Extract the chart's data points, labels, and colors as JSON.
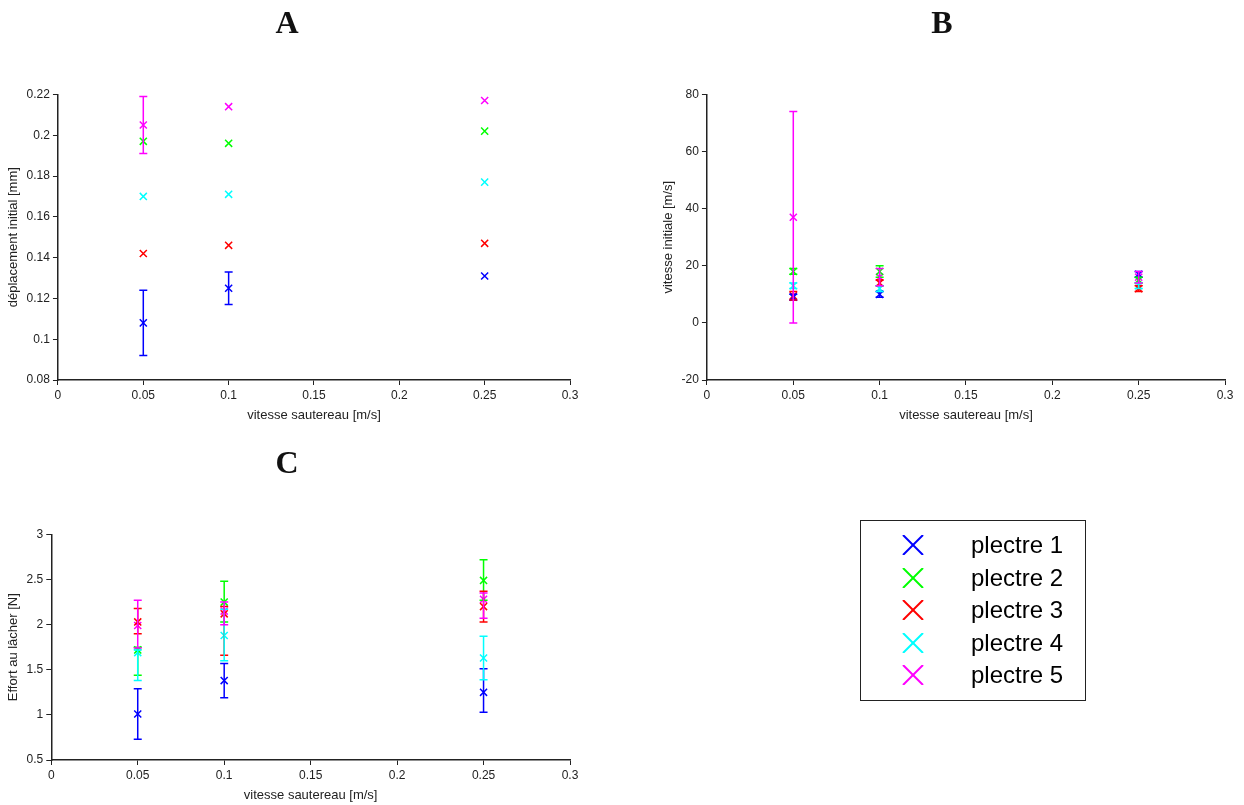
{
  "chart_data": [
    {
      "type": "scatter",
      "title": "A",
      "xlabel": "vitesse sautereau [m/s]",
      "ylabel": "déplacement initial [mm]",
      "xlim": [
        0,
        0.3
      ],
      "xticks": [
        0,
        0.05,
        0.1,
        0.15,
        0.2,
        0.25,
        0.3
      ],
      "ylim": [
        0.08,
        0.22
      ],
      "yticks": [
        0.08,
        0.1,
        0.12,
        0.14,
        0.16,
        0.18,
        0.2,
        0.22
      ],
      "marker": "cross",
      "grid": false,
      "x": [
        0.05,
        0.1,
        0.25
      ],
      "series": [
        {
          "color": "#0000ff",
          "values": [
            0.108,
            0.125,
            0.131
          ],
          "errors": [
            [
              0.092,
              0.124
            ],
            [
              0.117,
              0.133
            ],
            null
          ]
        },
        {
          "color": "#00ff00",
          "values": [
            0.197,
            0.196,
            0.202
          ]
        },
        {
          "color": "#ff0000",
          "values": [
            0.142,
            0.146,
            0.147
          ]
        },
        {
          "color": "#00ffff",
          "values": [
            0.17,
            0.171,
            0.177
          ]
        },
        {
          "color": "#ff00ff",
          "values": [
            0.205,
            0.214,
            0.217
          ],
          "errors": [
            [
              0.191,
              0.219
            ],
            null,
            null
          ]
        }
      ]
    },
    {
      "type": "scatter",
      "title": "B",
      "xlabel": "vitesse sautereau [m/s]",
      "ylabel": "vitesse initiale [m/s]",
      "xlim": [
        0,
        0.3
      ],
      "xticks": [
        0,
        0.05,
        0.1,
        0.15,
        0.2,
        0.25,
        0.3
      ],
      "ylim": [
        -20,
        80
      ],
      "yticks": [
        -20,
        0,
        20,
        40,
        60,
        80
      ],
      "marker": "cross",
      "grid": false,
      "x": [
        0.05,
        0.1,
        0.25
      ],
      "series": [
        {
          "color": "#0000ff",
          "values": [
            9,
            10,
            17
          ],
          "errors": [
            [
              8,
              10
            ],
            [
              9,
              11
            ],
            [
              16,
              18
            ]
          ]
        },
        {
          "color": "#00ff00",
          "values": [
            18,
            18,
            15
          ],
          "errors": [
            [
              17,
              19
            ],
            [
              16,
              20
            ],
            [
              14,
              16
            ]
          ]
        },
        {
          "color": "#ff0000",
          "values": [
            9.5,
            14,
            12
          ],
          "errors": [
            [
              8,
              11
            ],
            [
              13,
              15
            ],
            [
              11,
              13
            ]
          ]
        },
        {
          "color": "#00ffff",
          "values": [
            13,
            12,
            13
          ],
          "errors": [
            [
              12,
              14
            ],
            [
              11,
              13
            ],
            [
              12,
              14
            ]
          ]
        },
        {
          "color": "#ff00ff",
          "values": [
            37,
            16,
            16
          ],
          "errors": [
            [
              0,
              74
            ],
            [
              13,
              19
            ],
            [
              14,
              18
            ]
          ]
        }
      ]
    },
    {
      "type": "scatter",
      "title": "C",
      "xlabel": "vitesse sautereau [m/s]",
      "ylabel": "Effort au lâcher [N]",
      "xlim": [
        0,
        0.3
      ],
      "xticks": [
        0,
        0.05,
        0.1,
        0.15,
        0.2,
        0.25,
        0.3
      ],
      "ylim": [
        0.5,
        3
      ],
      "yticks": [
        0.5,
        1,
        1.5,
        2,
        2.5,
        3
      ],
      "marker": "cross",
      "grid": false,
      "legend": "right",
      "x": [
        0.05,
        0.1,
        0.25
      ],
      "series": [
        {
          "name": "plectre 1",
          "color": "#0000ff",
          "values": [
            1.01,
            1.38,
            1.25
          ],
          "errors": [
            [
              0.73,
              1.29
            ],
            [
              1.19,
              1.57
            ],
            [
              1.03,
              1.51
            ]
          ]
        },
        {
          "name": "plectre 2",
          "color": "#00ff00",
          "values": [
            1.72,
            2.25,
            2.49
          ],
          "errors": [
            [
              1.44,
              1.75
            ],
            [
              2.03,
              2.48
            ],
            [
              2.27,
              2.72
            ]
          ]
        },
        {
          "name": "plectre 3",
          "color": "#ff0000",
          "values": [
            2.03,
            2.12,
            2.2
          ],
          "errors": [
            [
              1.9,
              2.18
            ],
            [
              1.66,
              2.2
            ],
            [
              2.03,
              2.37
            ]
          ]
        },
        {
          "name": "plectre 4",
          "color": "#00ffff",
          "values": [
            1.69,
            1.88,
            1.63
          ],
          "errors": [
            [
              1.38,
              1.72
            ],
            [
              1.6,
              2.17
            ],
            [
              1.39,
              1.87
            ]
          ]
        },
        {
          "name": "plectre 5",
          "color": "#ff00ff",
          "values": [
            1.99,
            2.15,
            2.28
          ],
          "errors": [
            [
              1.74,
              2.27
            ],
            [
              2.0,
              2.25
            ],
            [
              2.07,
              2.35
            ]
          ]
        }
      ]
    }
  ]
}
